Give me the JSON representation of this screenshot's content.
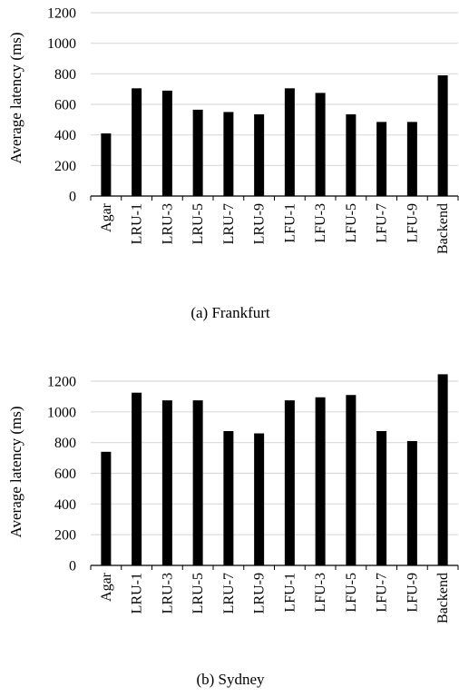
{
  "chart_data": [
    {
      "type": "bar",
      "caption": "(a) Frankfurt",
      "ylabel": "Average latency (ms)",
      "xlabel": "",
      "ylim": [
        0,
        1200
      ],
      "yticks": [
        0,
        200,
        400,
        600,
        800,
        1000,
        1200
      ],
      "grid": true,
      "bar_color": "#000000",
      "grid_color": "#d9d9d9",
      "categories": [
        "Agar",
        "LRU-1",
        "LRU-3",
        "LRU-5",
        "LRU-7",
        "LRU-9",
        "LFU-1",
        "LFU-3",
        "LFU-5",
        "LFU-7",
        "LFU-9",
        "Backend"
      ],
      "values": [
        410,
        705,
        690,
        565,
        550,
        535,
        705,
        675,
        535,
        485,
        485,
        790
      ]
    },
    {
      "type": "bar",
      "caption": "(b) Sydney",
      "ylabel": "Average latency (ms)",
      "xlabel": "",
      "ylim": [
        0,
        1200
      ],
      "yticks": [
        0,
        200,
        400,
        600,
        800,
        1000,
        1200
      ],
      "grid": true,
      "bar_color": "#000000",
      "grid_color": "#d9d9d9",
      "categories": [
        "Agar",
        "LRU-1",
        "LRU-3",
        "LRU-5",
        "LRU-7",
        "LRU-9",
        "LFU-1",
        "LFU-3",
        "LFU-5",
        "LFU-7",
        "LFU-9",
        "Backend"
      ],
      "values": [
        740,
        1125,
        1075,
        1075,
        875,
        860,
        1075,
        1095,
        1110,
        875,
        810,
        1245
      ]
    }
  ]
}
